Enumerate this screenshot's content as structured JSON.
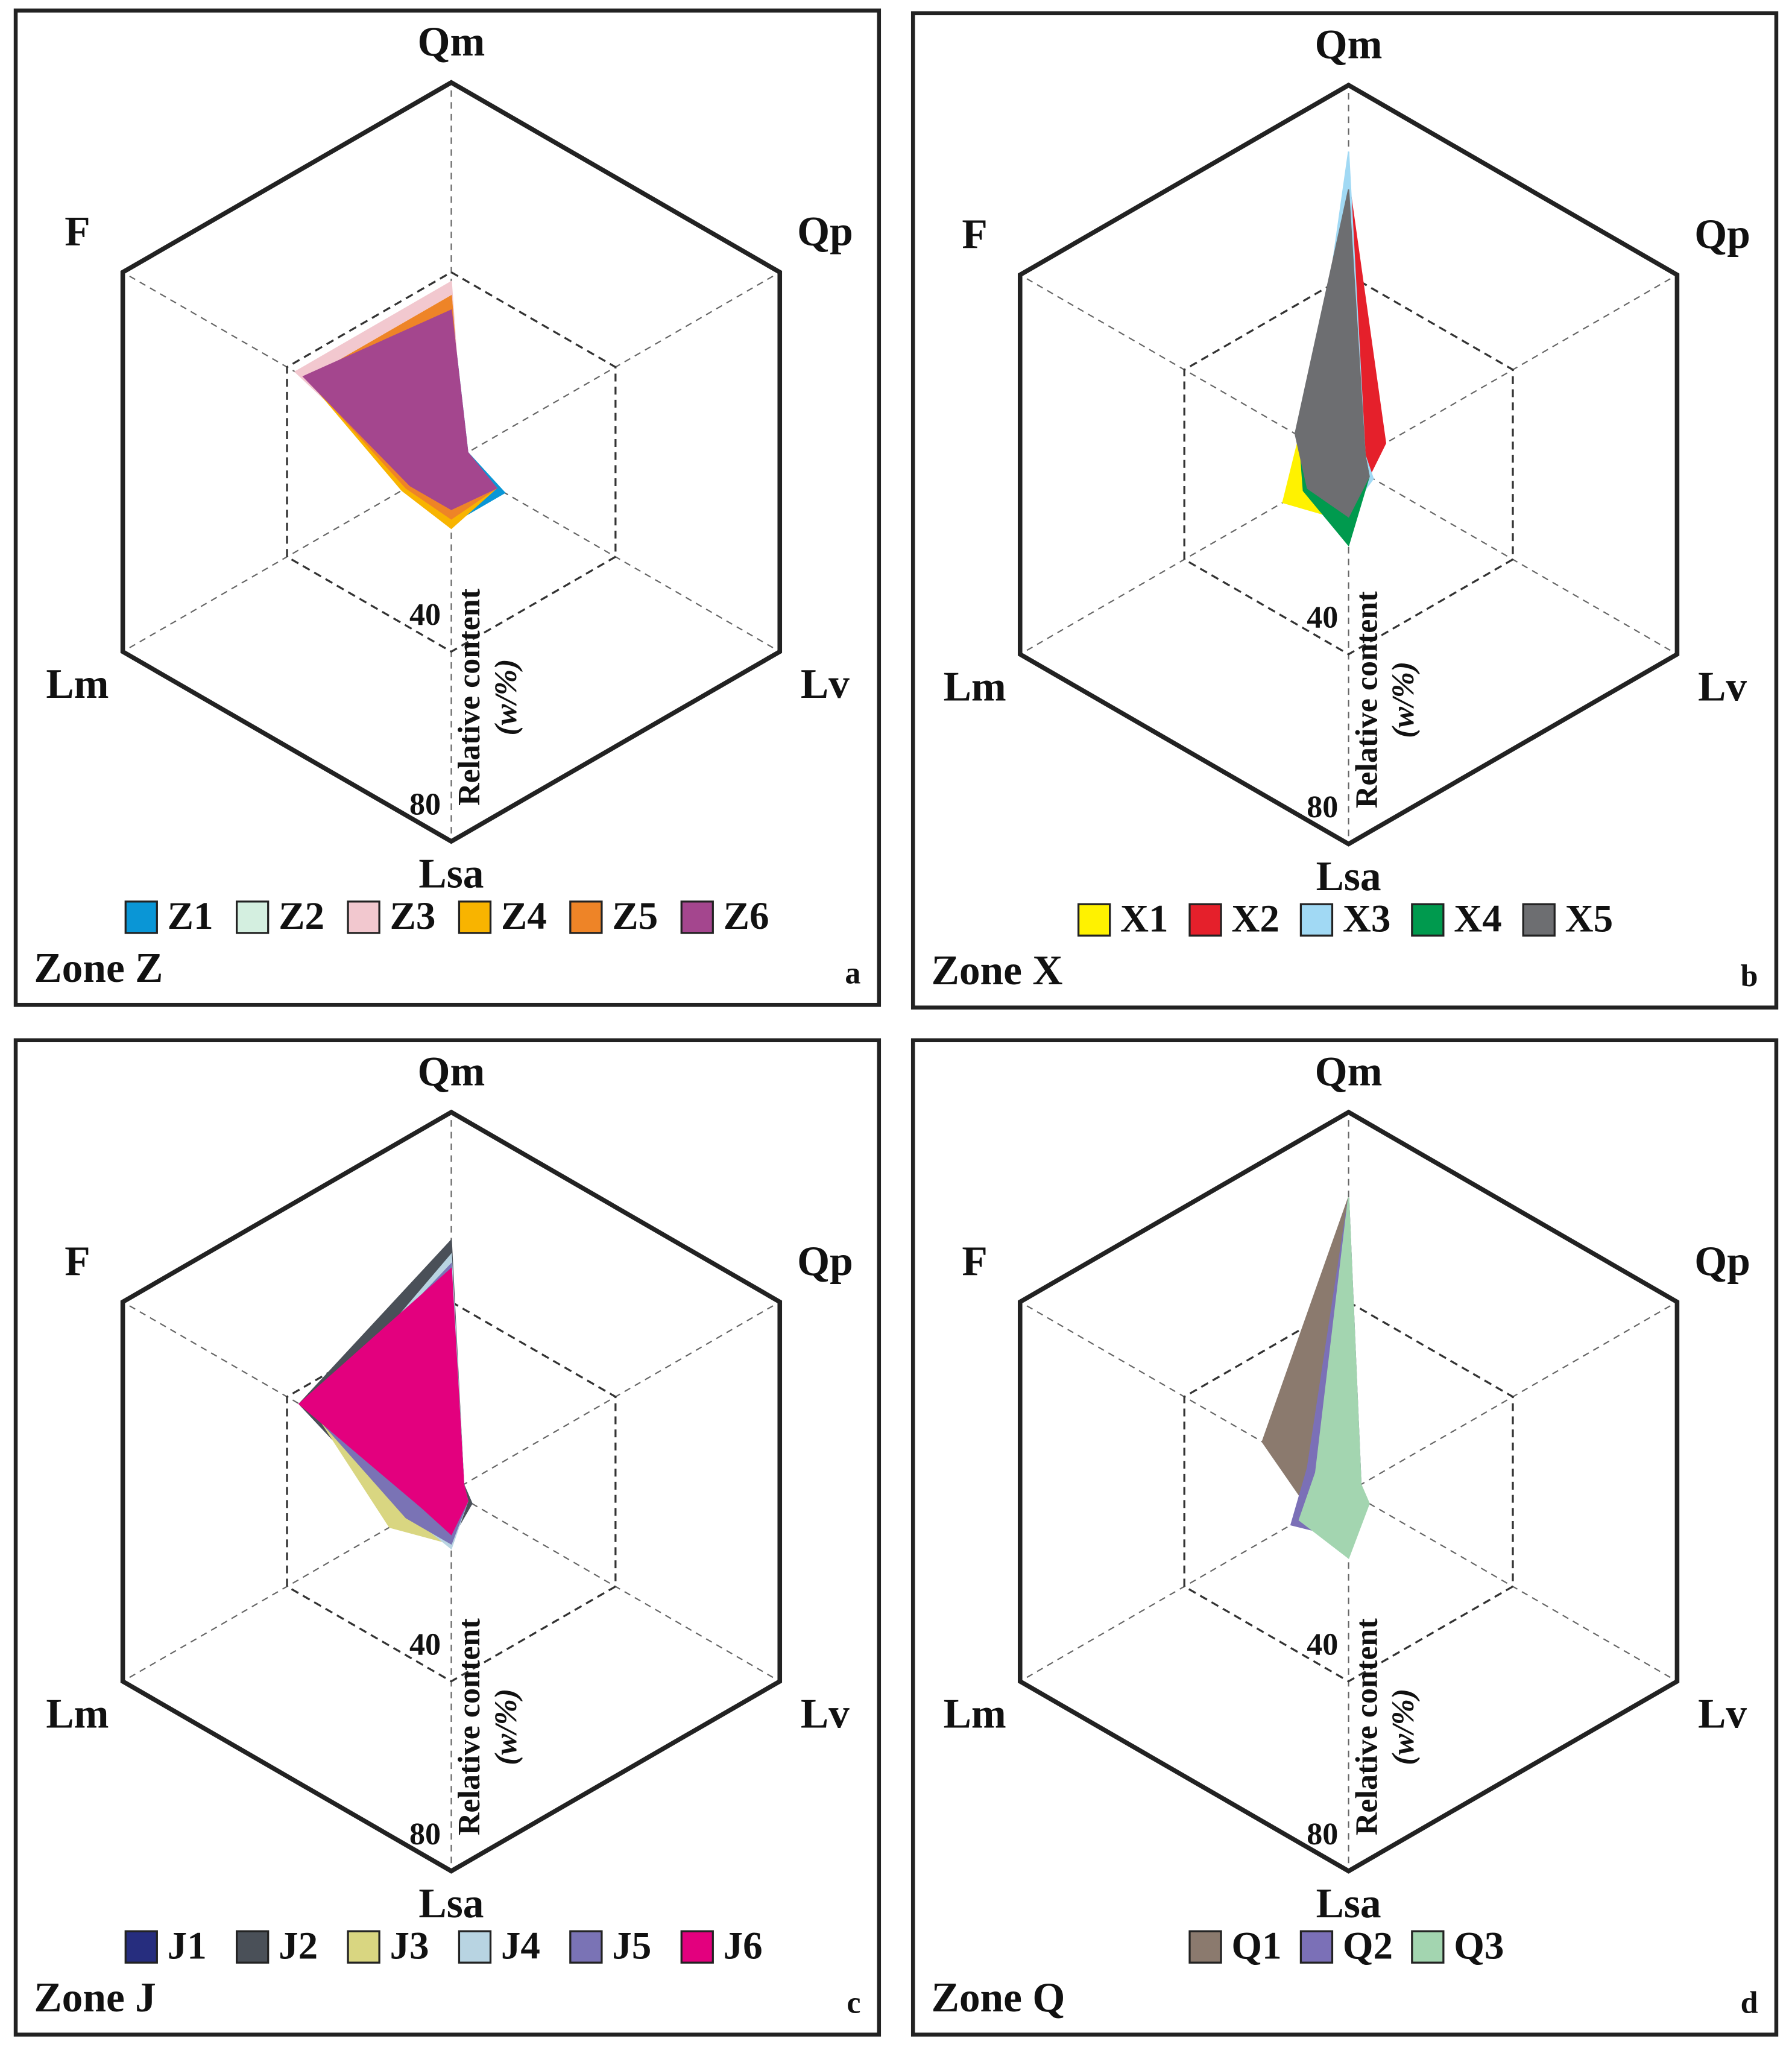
{
  "chart_data": [
    {
      "type": "radar",
      "title": "Zone Z",
      "panel_label": "a",
      "axes": [
        "Qm",
        "Qp",
        "Lv",
        "Lsa",
        "Lm",
        "F"
      ],
      "rlim": [
        0,
        80
      ],
      "rticks": [
        40,
        80
      ],
      "axis_title": "Relative content",
      "axis_unit": "(w/%)",
      "series": [
        {
          "name": "Z1",
          "color": "#0a96d6",
          "values": [
            32,
            4,
            13,
            13,
            10,
            35
          ]
        },
        {
          "name": "Z2",
          "color": "#d4efe0",
          "values": [
            33,
            3,
            11,
            11,
            10,
            36
          ]
        },
        {
          "name": "Z3",
          "color": "#f2c8cf",
          "values": [
            38,
            3,
            10,
            12,
            9,
            38
          ]
        },
        {
          "name": "Z4",
          "color": "#f8b400",
          "values": [
            35,
            3,
            11,
            14,
            12,
            35
          ]
        },
        {
          "name": "Z5",
          "color": "#ee8427",
          "values": [
            35,
            3,
            11,
            12,
            11,
            35
          ]
        },
        {
          "name": "Z6",
          "color": "#a4468e",
          "values": [
            32,
            4,
            11,
            10,
            10,
            36
          ]
        }
      ]
    },
    {
      "type": "radar",
      "title": "Zone X",
      "panel_label": "b",
      "axes": [
        "Qm",
        "Qp",
        "Lv",
        "Lsa",
        "Lm",
        "F"
      ],
      "rlim": [
        0,
        80
      ],
      "rticks": [
        40,
        80
      ],
      "axis_title": "Relative content",
      "axis_unit": "(w/%)",
      "series": [
        {
          "name": "X1",
          "color": "#fff200",
          "values": [
            50,
            4,
            5,
            12,
            16,
            12
          ]
        },
        {
          "name": "X2",
          "color": "#e5202b",
          "values": [
            60,
            9,
            5,
            10,
            9,
            12
          ]
        },
        {
          "name": "X3",
          "color": "#a1d9f4",
          "values": [
            66,
            4,
            6,
            10,
            8,
            10
          ]
        },
        {
          "name": "X4",
          "color": "#009a4e",
          "values": [
            50,
            4,
            5,
            17,
            11,
            12
          ]
        },
        {
          "name": "X5",
          "color": "#6d6e71",
          "values": [
            58,
            4,
            5,
            11,
            10,
            13
          ]
        }
      ]
    },
    {
      "type": "radar",
      "title": "Zone J",
      "panel_label": "c",
      "axes": [
        "Qm",
        "Qp",
        "Lv",
        "Lsa",
        "Lm",
        "F"
      ],
      "rlim": [
        0,
        80
      ],
      "rticks": [
        40,
        80
      ],
      "axis_title": "Relative content",
      "axis_unit": "(w/%)",
      "series": [
        {
          "name": "J1",
          "color": "#262d7e",
          "values": [
            50,
            3,
            5,
            10,
            11,
            37
          ]
        },
        {
          "name": "J2",
          "color": "#4a5058",
          "values": [
            53,
            3,
            5,
            10,
            11,
            37
          ]
        },
        {
          "name": "J3",
          "color": "#d9d681",
          "values": [
            45,
            2,
            4,
            11,
            15,
            33
          ]
        },
        {
          "name": "J4",
          "color": "#b8d4e2",
          "values": [
            50,
            3,
            4,
            12,
            10,
            33
          ]
        },
        {
          "name": "J5",
          "color": "#7a73b5",
          "values": [
            48,
            2,
            4,
            11,
            11,
            34
          ]
        },
        {
          "name": "J6",
          "color": "#e3007e",
          "values": [
            47,
            3,
            4,
            9,
            7,
            37
          ]
        }
      ]
    },
    {
      "type": "radar",
      "title": "Zone Q",
      "panel_label": "d",
      "axes": [
        "Qm",
        "Qp",
        "Lv",
        "Lsa",
        "Lm",
        "F"
      ],
      "rlim": [
        0,
        80
      ],
      "rticks": [
        40,
        80
      ],
      "axis_title": "Relative content",
      "axis_unit": "(w/%)",
      "series": [
        {
          "name": "Q1",
          "color": "#8b7a6e",
          "values": [
            62,
            3,
            4,
            10,
            9,
            21
          ]
        },
        {
          "name": "Q2",
          "color": "#7b70b7",
          "values": [
            62,
            3,
            4,
            10,
            14,
            10
          ]
        },
        {
          "name": "Q3",
          "color": "#a3d5b0",
          "values": [
            62,
            3,
            5,
            14,
            12,
            8
          ]
        }
      ]
    }
  ]
}
